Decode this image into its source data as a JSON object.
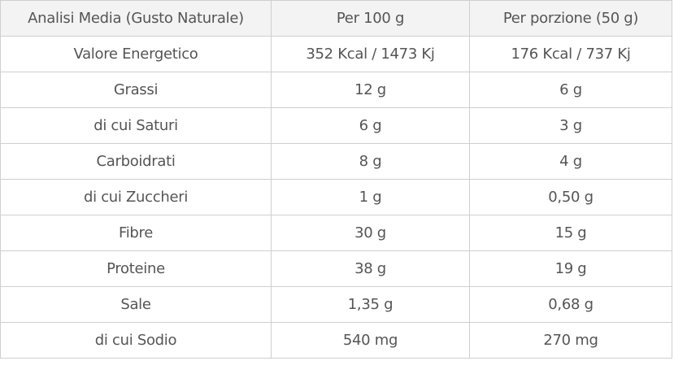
{
  "table": {
    "header": [
      "Analisi Media (Gusto Naturale)",
      "Per 100 g",
      "Per porzione (50 g)"
    ],
    "rows": [
      [
        "Valore Energetico",
        "352 Kcal / 1473 Kj",
        "176 Kcal / 737 Kj"
      ],
      [
        "Grassi",
        "12 g",
        "6 g"
      ],
      [
        "di cui Saturi",
        "6 g",
        "3 g"
      ],
      [
        "Carboidrati",
        "8 g",
        "4 g"
      ],
      [
        "di cui Zuccheri",
        "1 g",
        "0,50 g"
      ],
      [
        "Fibre",
        "30 g",
        "15 g"
      ],
      [
        "Proteine",
        "38 g",
        "19 g"
      ],
      [
        "Sale",
        "1,35 g",
        "0,68 g"
      ],
      [
        "di cui Sodio",
        "540 mg",
        "270 mg"
      ]
    ]
  }
}
